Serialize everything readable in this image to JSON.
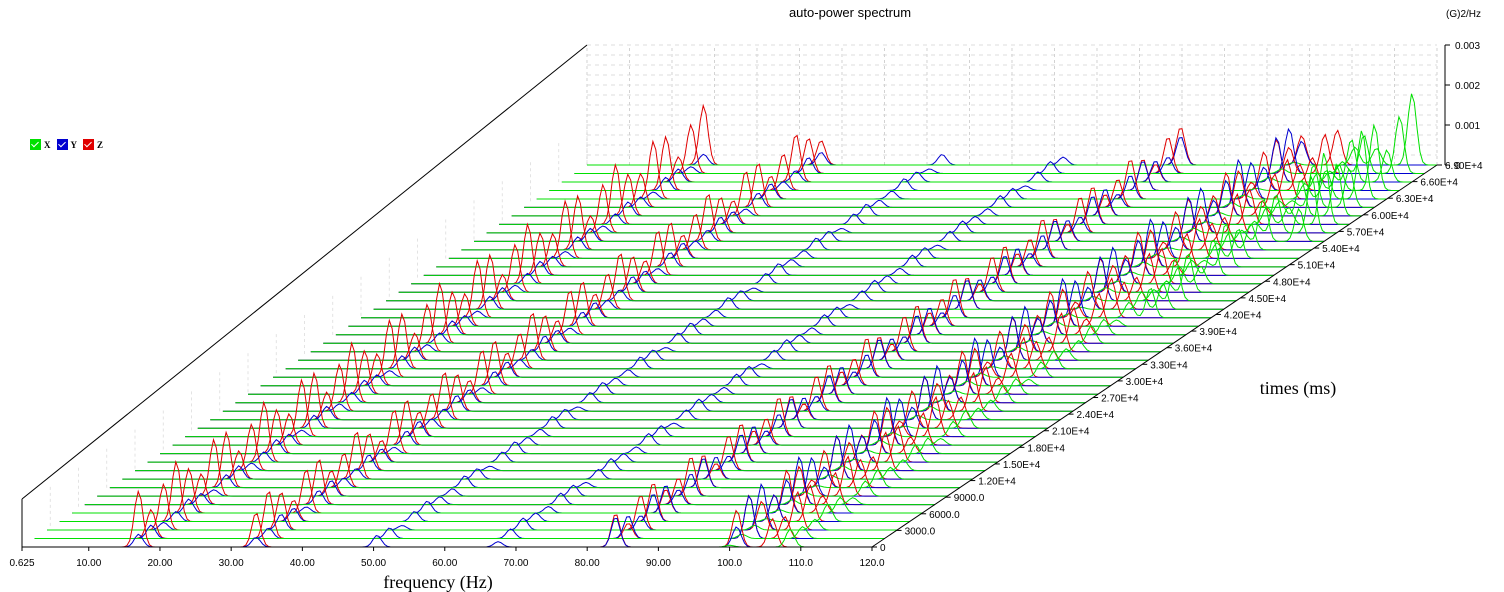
{
  "chart_data": {
    "type": "waterfall",
    "title": "auto-power spectrum",
    "xlabel": "frequency (Hz)",
    "zlabel": "times (ms)",
    "ylabel": "(G)2/Hz",
    "x_ticks": [
      "0.625",
      "10.00",
      "20.00",
      "30.00",
      "40.00",
      "50.00",
      "60.00",
      "70.00",
      "80.00",
      "90.00",
      "100.0",
      "110.0",
      "120.0"
    ],
    "xlim": [
      0.625,
      120.0
    ],
    "y_ticks": [
      "0",
      "0.001",
      "0.002",
      "0.003"
    ],
    "ylim": [
      0,
      0.003
    ],
    "z_ticks": [
      "0",
      "3000.0",
      "6000.0",
      "9000.0",
      "1.20E+4",
      "1.50E+4",
      "1.80E+4",
      "2.10E+4",
      "2.40E+4",
      "2.70E+4",
      "3.00E+4",
      "3.30E+4",
      "3.60E+4",
      "3.90E+4",
      "4.20E+4",
      "4.50E+4",
      "4.80E+4",
      "5.10E+4",
      "5.40E+4",
      "5.70E+4",
      "6.00E+4",
      "6.30E+4",
      "6.60E+4",
      "6.90E+4"
    ],
    "zlim": [
      0,
      69000
    ],
    "frames": 46,
    "legend_position": "left",
    "series": [
      {
        "name": "X",
        "color": "#00e000",
        "peaks": [
          {
            "freq": 100.0,
            "amp": 0.00012
          },
          {
            "freq": 108.5,
            "amp": 0.00045
          },
          {
            "freq": 111.5,
            "amp": 0.0011,
            "from_time": 40000
          },
          {
            "freq": 116.5,
            "amp": 0.0018,
            "from_time": 55000
          }
        ]
      },
      {
        "name": "Y",
        "color": "#0000d0",
        "peaks": [
          {
            "freq": 17.0,
            "amp": 0.00035
          },
          {
            "freq": 33.5,
            "amp": 0.0004
          },
          {
            "freq": 50.5,
            "amp": 0.0003
          },
          {
            "freq": 67.5,
            "amp": 0.0003
          },
          {
            "freq": 84.0,
            "amp": 0.00075
          },
          {
            "freq": 101.0,
            "amp": 0.0012
          }
        ]
      },
      {
        "name": "Z",
        "color": "#e00000",
        "peaks": [
          {
            "freq": 17.0,
            "amp": 0.0015
          },
          {
            "freq": 33.5,
            "amp": 0.0012
          },
          {
            "freq": 84.0,
            "amp": 0.001
          },
          {
            "freq": 101.0,
            "amp": 0.0011
          },
          {
            "freq": 106.0,
            "amp": 0.001
          }
        ]
      }
    ]
  }
}
